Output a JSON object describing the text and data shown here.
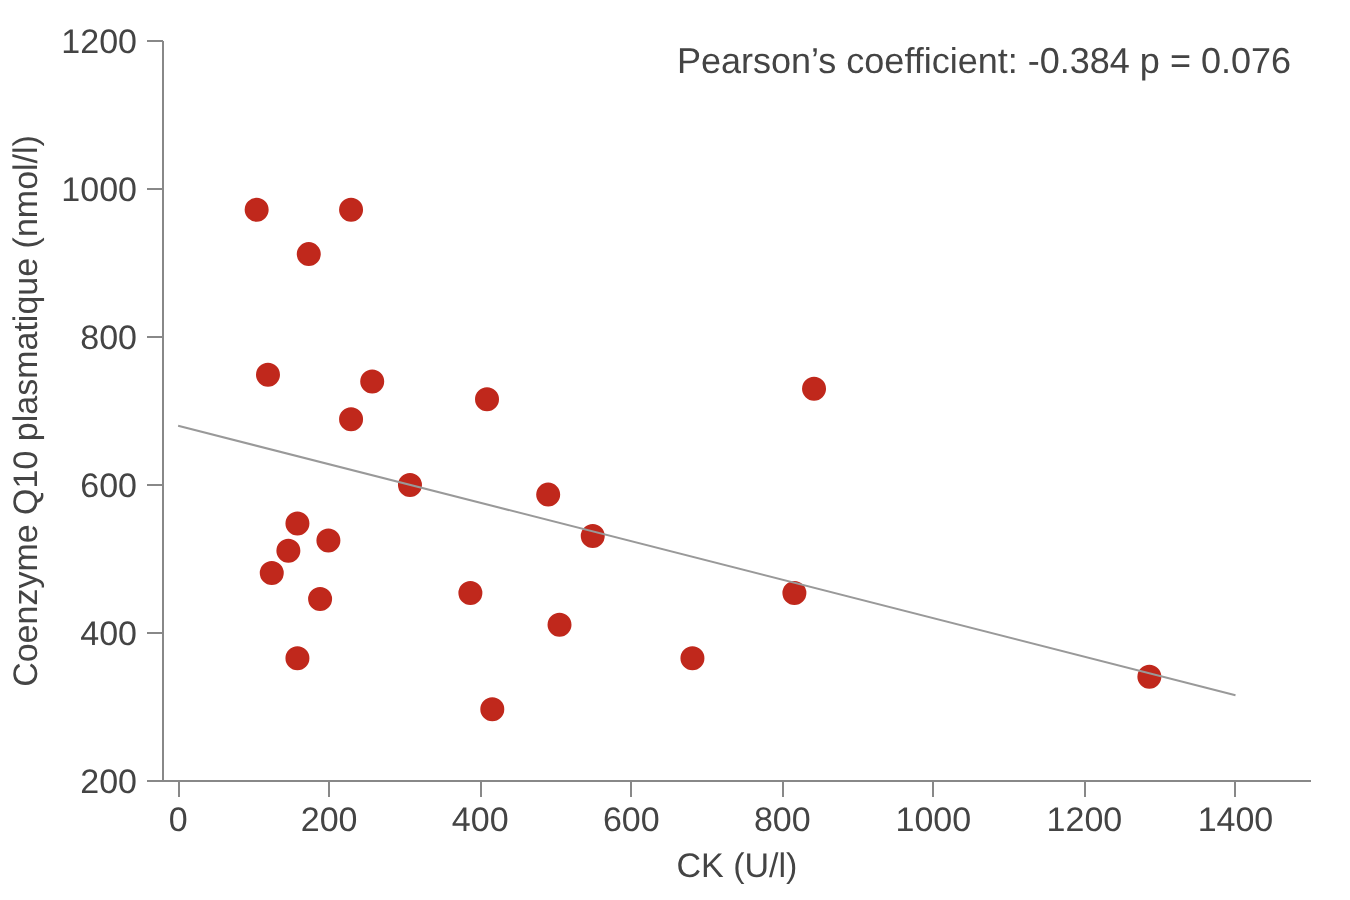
{
  "chart_data": {
    "type": "scatter",
    "xlabel": "CK (U/l)",
    "ylabel": "Coenzyme Q10 plasmatique (nmol/l)",
    "annotations": [
      "Pearson’s coefficient: -0.384  p = 0.076"
    ],
    "xlim": [
      -20,
      1500
    ],
    "ylim": [
      200,
      1200
    ],
    "xticks": [
      0,
      200,
      400,
      600,
      800,
      1000,
      1200,
      1400
    ],
    "yticks": [
      200,
      400,
      600,
      800,
      1000,
      1200
    ],
    "grid": false,
    "series": [
      {
        "color": "#c0281c",
        "marker": "circle",
        "x": [
          104,
          229,
          173,
          119,
          257,
          229,
          409,
          307,
          490,
          549,
          158,
          146,
          199,
          124,
          188,
          387,
          505,
          158,
          416,
          842,
          816,
          681,
          1286
        ],
        "values": [
          972,
          972,
          912,
          749,
          740,
          689,
          716,
          600,
          587,
          531,
          548,
          511,
          525,
          481,
          446,
          454,
          411,
          366,
          297,
          730,
          454,
          366,
          341
        ]
      },
      {
        "type": "line",
        "color": "#999999",
        "line_style": "solid",
        "marker": "none",
        "x": [
          0,
          1400
        ],
        "values": [
          680,
          316
        ]
      }
    ]
  }
}
